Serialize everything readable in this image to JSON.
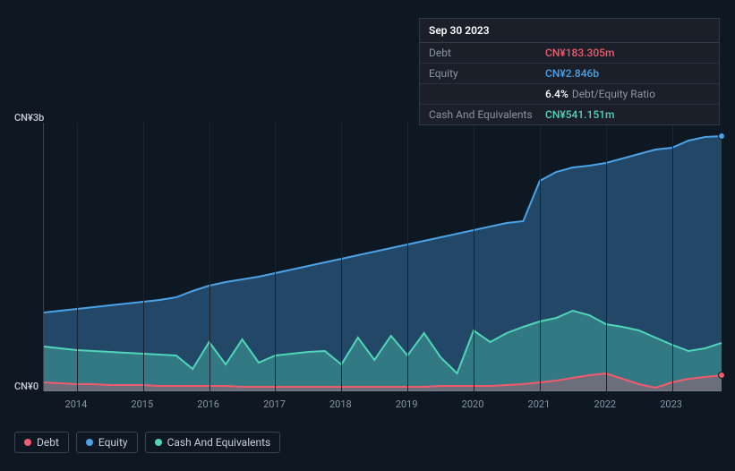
{
  "tooltip": {
    "date": "Sep 30 2023",
    "rows": [
      {
        "label": "Debt",
        "value": "CN¥183.305m",
        "color": "#f15b6c"
      },
      {
        "label": "Equity",
        "value": "CN¥2.846b",
        "color": "#4aa3e8"
      },
      {
        "label": "",
        "ratio_pct": "6.4%",
        "ratio_suffix": "Debt/Equity Ratio",
        "color": "#ffffff"
      },
      {
        "label": "Cash And Equivalents",
        "value": "CN¥541.151m",
        "color": "#4fd6b8"
      }
    ]
  },
  "chart": {
    "type": "area",
    "background_color": "#0e1823",
    "grid_color": "#1a2430",
    "axis_color": "#3a4452",
    "label_color": "#8a95a5",
    "y_top_label": "CN¥3b",
    "y_bottom_label": "CN¥0",
    "ylim": [
      0,
      3.0
    ],
    "x_years": [
      2014,
      2015,
      2016,
      2017,
      2018,
      2019,
      2020,
      2021,
      2022,
      2023
    ],
    "x_n": 42,
    "series": {
      "equity": {
        "label": "Equity",
        "color": "#4aa3e8",
        "fill_opacity": 0.35,
        "line_width": 2,
        "values": [
          0.88,
          0.9,
          0.92,
          0.94,
          0.96,
          0.98,
          1.0,
          1.02,
          1.05,
          1.12,
          1.18,
          1.22,
          1.25,
          1.28,
          1.32,
          1.36,
          1.4,
          1.44,
          1.48,
          1.52,
          1.56,
          1.6,
          1.64,
          1.68,
          1.72,
          1.76,
          1.8,
          1.84,
          1.88,
          1.9,
          2.35,
          2.45,
          2.5,
          2.52,
          2.55,
          2.6,
          2.65,
          2.7,
          2.72,
          2.8,
          2.84,
          2.85
        ]
      },
      "cash": {
        "label": "Cash And Equivalents",
        "color": "#4fd6b8",
        "fill_opacity": 0.35,
        "line_width": 2,
        "values": [
          0.5,
          0.48,
          0.46,
          0.45,
          0.44,
          0.43,
          0.42,
          0.41,
          0.4,
          0.25,
          0.55,
          0.3,
          0.58,
          0.32,
          0.4,
          0.42,
          0.44,
          0.45,
          0.3,
          0.6,
          0.35,
          0.62,
          0.4,
          0.65,
          0.38,
          0.2,
          0.68,
          0.55,
          0.65,
          0.72,
          0.78,
          0.82,
          0.9,
          0.85,
          0.75,
          0.72,
          0.68,
          0.6,
          0.52,
          0.45,
          0.48,
          0.54
        ]
      },
      "debt": {
        "label": "Debt",
        "color": "#f15b6c",
        "fill_opacity": 0.3,
        "line_width": 2,
        "values": [
          0.1,
          0.09,
          0.08,
          0.08,
          0.07,
          0.07,
          0.07,
          0.06,
          0.06,
          0.06,
          0.06,
          0.06,
          0.05,
          0.05,
          0.05,
          0.05,
          0.05,
          0.05,
          0.05,
          0.05,
          0.05,
          0.05,
          0.05,
          0.05,
          0.06,
          0.06,
          0.06,
          0.06,
          0.07,
          0.08,
          0.1,
          0.12,
          0.15,
          0.18,
          0.2,
          0.14,
          0.08,
          0.04,
          0.1,
          0.14,
          0.16,
          0.18
        ]
      }
    },
    "markers": [
      {
        "series": "equity",
        "x_index": 41,
        "color": "#4aa3e8"
      },
      {
        "series": "debt",
        "x_index": 41,
        "color": "#f15b6c"
      }
    ]
  },
  "legend": {
    "items": [
      {
        "key": "debt",
        "label": "Debt",
        "color": "#f15b6c"
      },
      {
        "key": "equity",
        "label": "Equity",
        "color": "#4aa3e8"
      },
      {
        "key": "cash",
        "label": "Cash And Equivalents",
        "color": "#4fd6b8"
      }
    ]
  }
}
